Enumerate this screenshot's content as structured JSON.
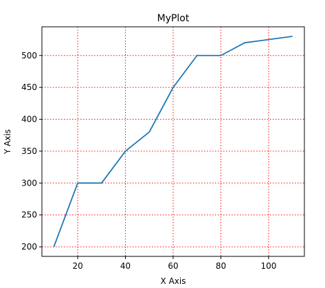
{
  "chart_data": {
    "type": "line",
    "title": "MyPlot",
    "xlabel": "X Axis",
    "ylabel": "Y Axis",
    "xlim": [
      5,
      115
    ],
    "ylim": [
      185,
      545
    ],
    "xticks": [
      20,
      40,
      60,
      80,
      100
    ],
    "yticks": [
      200,
      250,
      300,
      350,
      400,
      450,
      500
    ],
    "grid": true,
    "grid_color": "#ff0000",
    "series": [
      {
        "color": "#1f77b4",
        "x": [
          10,
          20,
          30,
          40,
          50,
          60,
          70,
          80,
          90,
          110
        ],
        "y": [
          200,
          300,
          300,
          350,
          380,
          450,
          500,
          500,
          520,
          530
        ]
      }
    ]
  }
}
